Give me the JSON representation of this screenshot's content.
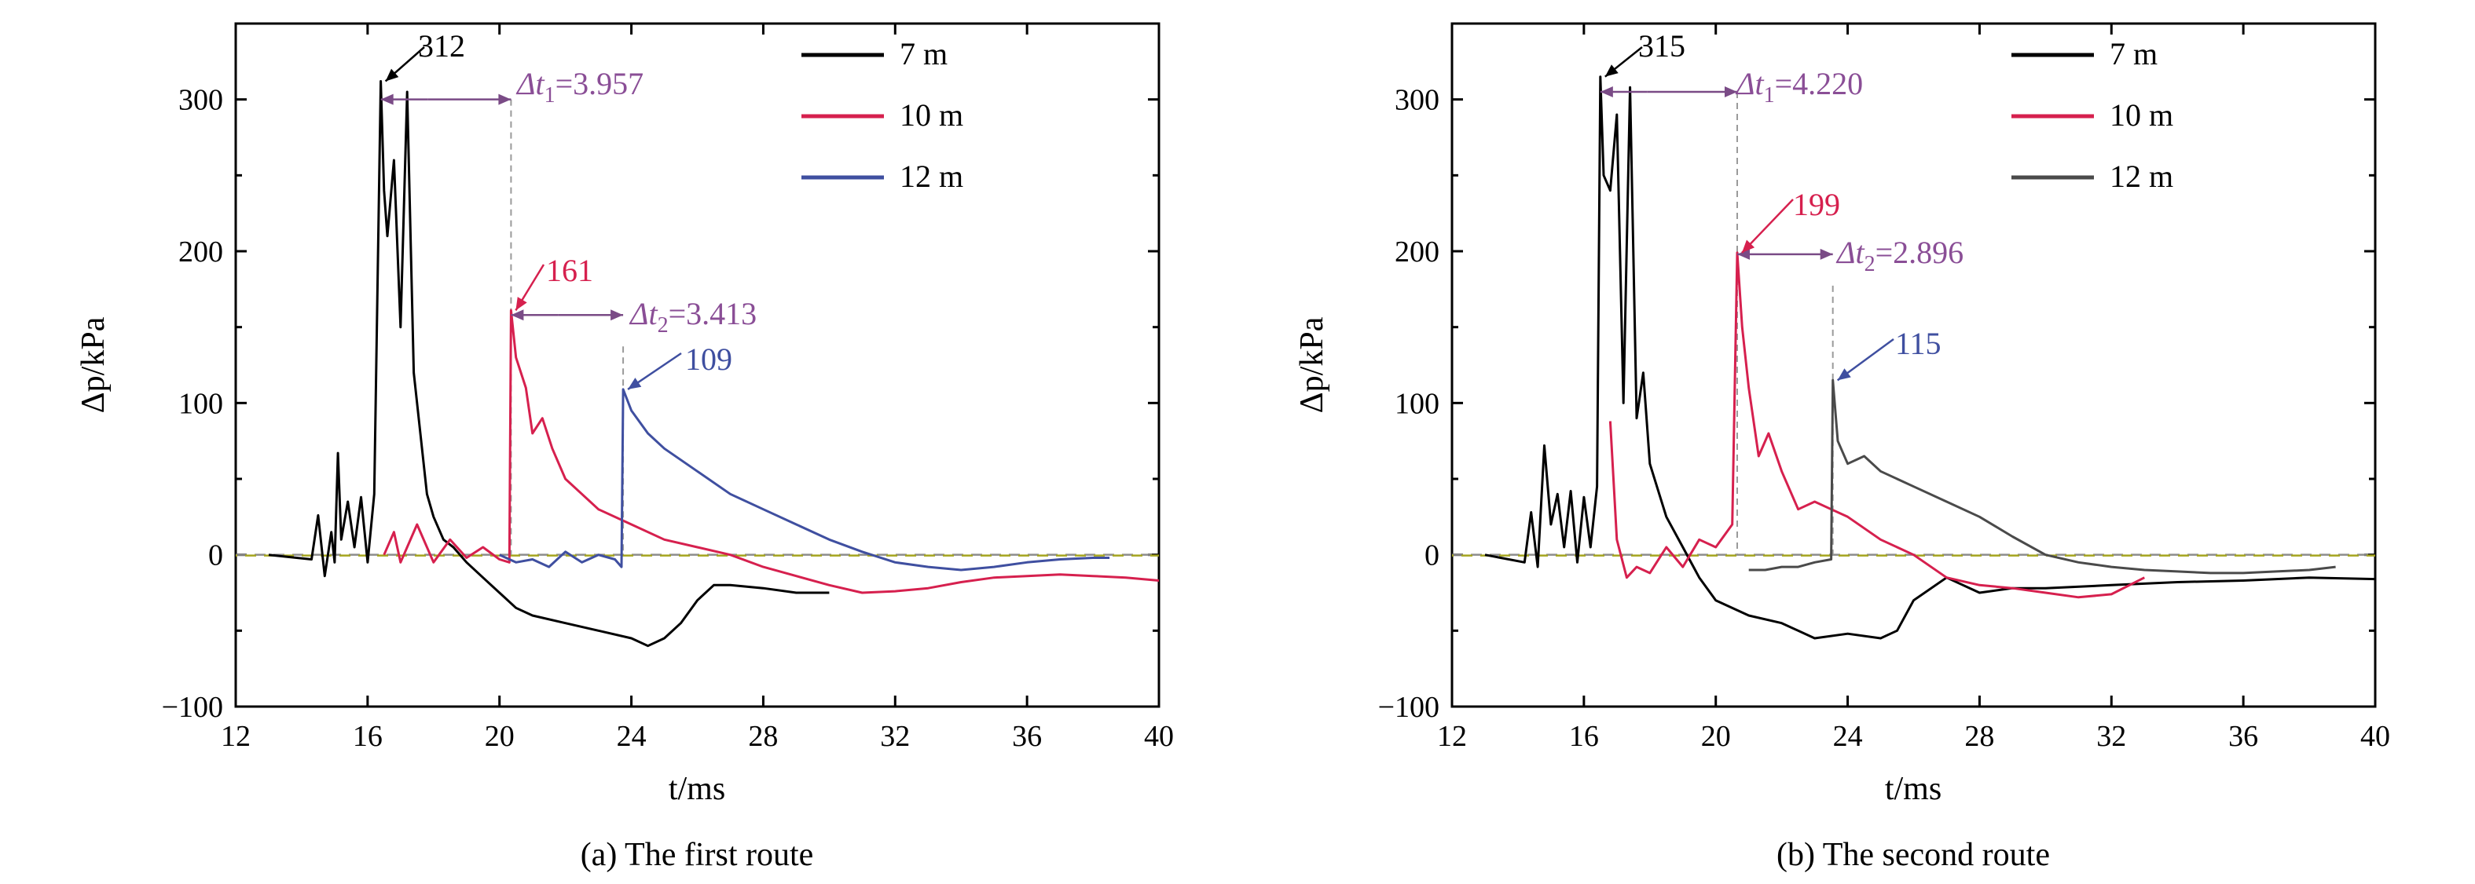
{
  "chart_data": [
    {
      "type": "line",
      "caption": "(a) The first route",
      "xlabel": "t/ms",
      "ylabel": "Δp/kPa",
      "xlim": [
        12,
        40
      ],
      "ylim": [
        -100,
        350
      ],
      "xticks": [
        12,
        16,
        20,
        24,
        28,
        32,
        36,
        40
      ],
      "yticks": [
        -100,
        0,
        100,
        200,
        300
      ],
      "legend_position": "top-right",
      "series": [
        {
          "name": "7 m",
          "color": "#000000",
          "x": [
            13.0,
            14.3,
            14.5,
            14.7,
            14.9,
            15.0,
            15.1,
            15.2,
            15.4,
            15.6,
            15.8,
            16.0,
            16.2,
            16.4,
            16.5,
            16.6,
            16.8,
            17.0,
            17.2,
            17.4,
            17.6,
            17.8,
            18.0,
            18.3,
            18.6,
            19.0,
            19.5,
            20.0,
            20.5,
            21.0,
            22.0,
            23.0,
            24.0,
            24.5,
            25.0,
            25.5,
            26.0,
            26.5,
            27.0,
            28.0,
            29.0,
            30.0
          ],
          "y": [
            0,
            -3,
            26,
            -14,
            15,
            -5,
            67,
            10,
            35,
            5,
            38,
            -5,
            40,
            312,
            240,
            210,
            260,
            150,
            305,
            120,
            80,
            40,
            25,
            10,
            5,
            -5,
            -15,
            -25,
            -35,
            -40,
            -45,
            -50,
            -55,
            -60,
            -55,
            -45,
            -30,
            -20,
            -20,
            -22,
            -25,
            -25
          ]
        },
        {
          "name": "10 m",
          "color": "#d6204e",
          "x": [
            16.5,
            16.8,
            17.0,
            17.5,
            18.0,
            18.5,
            19.0,
            19.5,
            20.0,
            20.3,
            20.35,
            20.5,
            20.8,
            21.0,
            21.3,
            21.6,
            22.0,
            22.5,
            23.0,
            24.0,
            25.0,
            26.0,
            27.0,
            28.0,
            29.0,
            30.0,
            31.0,
            32.0,
            33.0,
            34.0,
            35.0,
            36.0,
            37.0,
            38.0,
            39.0,
            40.0
          ],
          "y": [
            0,
            15,
            -5,
            20,
            -5,
            10,
            -2,
            5,
            -3,
            -5,
            161,
            130,
            110,
            80,
            90,
            70,
            50,
            40,
            30,
            20,
            10,
            5,
            0,
            -8,
            -14,
            -20,
            -25,
            -24,
            -22,
            -18,
            -15,
            -14,
            -13,
            -14,
            -15,
            -17
          ]
        },
        {
          "name": "12 m",
          "color": "#3f4fa0",
          "x": [
            20.0,
            20.5,
            21.0,
            21.5,
            22.0,
            22.5,
            23.0,
            23.5,
            23.7,
            23.75,
            24.0,
            24.5,
            25.0,
            26.0,
            27.0,
            28.0,
            29.0,
            30.0,
            31.0,
            32.0,
            33.0,
            34.0,
            35.0,
            36.0,
            37.0,
            38.0,
            38.5
          ],
          "y": [
            0,
            -5,
            -3,
            -8,
            2,
            -5,
            0,
            -3,
            -8,
            109,
            95,
            80,
            70,
            55,
            40,
            30,
            20,
            10,
            2,
            -5,
            -8,
            -10,
            -8,
            -5,
            -3,
            -2,
            -2
          ]
        }
      ],
      "annotations": {
        "peak1": "312",
        "peak2": "161",
        "peak3": "109",
        "dt1_prefix": "Δt",
        "dt1_sub": "1",
        "dt1_value": "=3.957",
        "dt2_prefix": "Δt",
        "dt2_sub": "2",
        "dt2_value": "=3.413"
      }
    },
    {
      "type": "line",
      "caption": "(b) The second route",
      "xlabel": "t/ms",
      "ylabel": "Δp/kPa",
      "xlim": [
        12,
        40
      ],
      "ylim": [
        -100,
        350
      ],
      "xticks": [
        12,
        16,
        20,
        24,
        28,
        32,
        36,
        40
      ],
      "yticks": [
        -100,
        0,
        100,
        200,
        300
      ],
      "legend_position": "top-right",
      "series": [
        {
          "name": "7 m",
          "color": "#000000",
          "x": [
            13.0,
            14.2,
            14.4,
            14.6,
            14.8,
            15.0,
            15.2,
            15.4,
            15.6,
            15.8,
            16.0,
            16.2,
            16.4,
            16.5,
            16.6,
            16.8,
            17.0,
            17.2,
            17.4,
            17.6,
            17.8,
            18.0,
            18.5,
            19.0,
            19.5,
            20.0,
            21.0,
            22.0,
            23.0,
            24.0,
            25.0,
            25.5,
            26.0,
            27.0,
            28.0,
            29.0,
            30.0,
            32.0,
            34.0,
            36.0,
            38.0,
            40.0
          ],
          "y": [
            0,
            -5,
            28,
            -8,
            72,
            20,
            40,
            5,
            42,
            -5,
            38,
            5,
            45,
            315,
            250,
            240,
            290,
            100,
            308,
            90,
            120,
            60,
            25,
            5,
            -15,
            -30,
            -40,
            -45,
            -55,
            -52,
            -55,
            -50,
            -30,
            -15,
            -25,
            -22,
            -22,
            -20,
            -18,
            -17,
            -15,
            -16
          ]
        },
        {
          "name": "10 m",
          "color": "#d6204e",
          "x": [
            16.8,
            17.0,
            17.3,
            17.6,
            18.0,
            18.5,
            19.0,
            19.5,
            20.0,
            20.5,
            20.65,
            20.8,
            21.0,
            21.3,
            21.6,
            22.0,
            22.5,
            23.0,
            23.5,
            24.0,
            25.0,
            26.0,
            27.0,
            28.0,
            29.0,
            30.0,
            31.0,
            32.0,
            33.0
          ],
          "y": [
            88,
            10,
            -15,
            -8,
            -12,
            5,
            -8,
            10,
            5,
            20,
            199,
            150,
            110,
            65,
            80,
            55,
            30,
            35,
            30,
            25,
            10,
            0,
            -15,
            -20,
            -22,
            -25,
            -28,
            -26,
            -15
          ]
        },
        {
          "name": "12 m",
          "color": "#4a4a4a",
          "x": [
            21.0,
            21.5,
            22.0,
            22.5,
            23.0,
            23.5,
            23.55,
            23.7,
            24.0,
            24.5,
            25.0,
            26.0,
            27.0,
            28.0,
            29.0,
            30.0,
            31.0,
            32.0,
            33.0,
            34.0,
            35.0,
            36.0,
            37.0,
            38.0,
            38.8
          ],
          "y": [
            -10,
            -10,
            -8,
            -8,
            -5,
            -3,
            115,
            75,
            60,
            65,
            55,
            45,
            35,
            25,
            12,
            0,
            -5,
            -8,
            -10,
            -11,
            -12,
            -12,
            -11,
            -10,
            -8
          ]
        }
      ],
      "annotations": {
        "peak1": "315",
        "peak2": "199",
        "peak3": "115",
        "dt1_prefix": "Δt",
        "dt1_sub": "1",
        "dt1_value": "=4.220",
        "dt2_prefix": "Δt",
        "dt2_sub": "2",
        "dt2_value": "=2.896"
      }
    }
  ]
}
